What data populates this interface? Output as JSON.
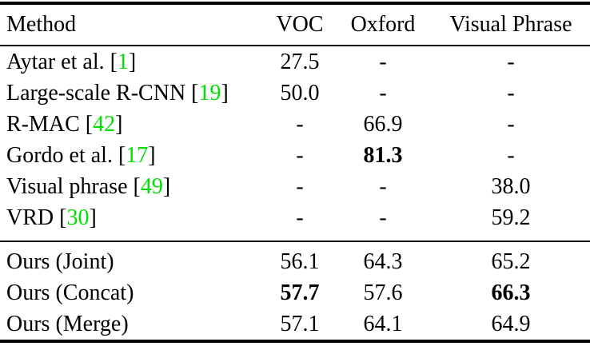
{
  "table": {
    "citation_color": "#00e000",
    "columns": [
      "Method",
      "VOC",
      "Oxford",
      "Visual Phrase"
    ],
    "missing_value": "-",
    "groups": [
      {
        "name": "baselines",
        "rows": [
          {
            "method": "Aytar et al.",
            "cite": "1",
            "values": [
              "27.5",
              "-",
              "-"
            ],
            "bold": []
          },
          {
            "method": "Large-scale R-CNN",
            "cite": "19",
            "values": [
              "50.0",
              "-",
              "-"
            ],
            "bold": []
          },
          {
            "method": "R-MAC",
            "cite": "42",
            "values": [
              "-",
              "66.9",
              "-"
            ],
            "bold": []
          },
          {
            "method": "Gordo et al.",
            "cite": "17",
            "values": [
              "-",
              "81.3",
              "-"
            ],
            "bold": [
              1
            ]
          },
          {
            "method": "Visual phrase",
            "cite": "49",
            "values": [
              "-",
              "-",
              "38.0"
            ],
            "bold": []
          },
          {
            "method": "VRD",
            "cite": "30",
            "values": [
              "-",
              "-",
              "59.2"
            ],
            "bold": []
          }
        ]
      },
      {
        "name": "ours",
        "rows": [
          {
            "method": "Ours (Joint)",
            "cite": null,
            "values": [
              "56.1",
              "64.3",
              "65.2"
            ],
            "bold": []
          },
          {
            "method": "Ours (Concat)",
            "cite": null,
            "values": [
              "57.7",
              "57.6",
              "66.3"
            ],
            "bold": [
              0,
              2
            ]
          },
          {
            "method": "Ours (Merge)",
            "cite": null,
            "values": [
              "57.1",
              "64.1",
              "64.9"
            ],
            "bold": []
          }
        ]
      }
    ]
  }
}
